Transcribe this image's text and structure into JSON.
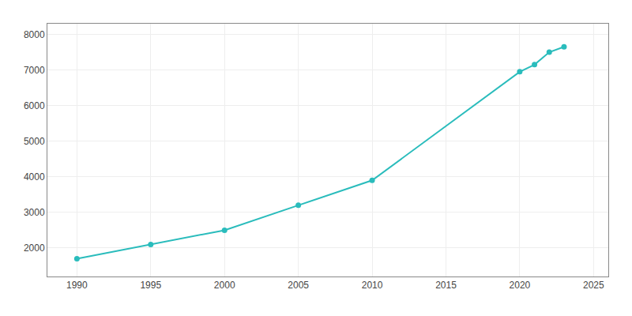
{
  "chart_data": {
    "type": "line",
    "x": [
      1990,
      1995,
      2000,
      2005,
      2010,
      2020,
      2021,
      2022,
      2023
    ],
    "values": [
      1700,
      2100,
      2500,
      3200,
      3900,
      6950,
      7150,
      7500,
      7650
    ],
    "color": "#2abcbc",
    "marker": "circle",
    "xlim": [
      1988,
      2026
    ],
    "ylim": [
      1200,
      8300
    ],
    "xticks": [
      1990,
      1995,
      2000,
      2005,
      2010,
      2015,
      2020,
      2025
    ],
    "yticks": [
      2000,
      3000,
      4000,
      5000,
      6000,
      7000,
      8000
    ],
    "grid": true
  }
}
